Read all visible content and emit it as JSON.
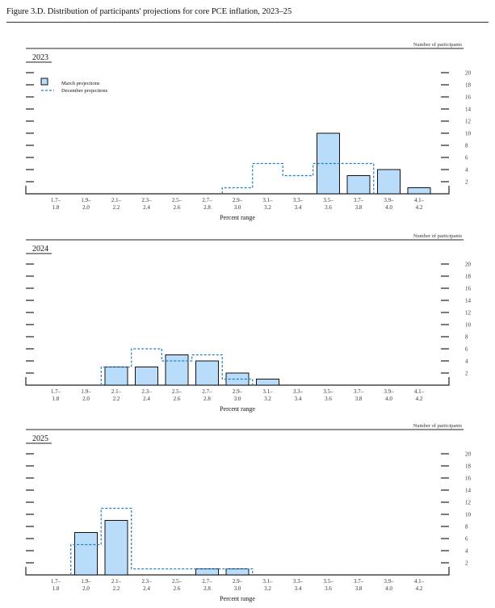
{
  "figure_title": "Figure 3.D. Distribution of participants' projections for core PCE inflation, 2023–25",
  "chart_data": [
    {
      "type": "bar",
      "title": "2023",
      "xlabel": "Percent range",
      "ylabel": "Number of participants",
      "categories": [
        [
          "1.7–",
          "1.8"
        ],
        [
          "1.9–",
          "2.0"
        ],
        [
          "2.1–",
          "2.2"
        ],
        [
          "2.3–",
          "2.4"
        ],
        [
          "2.5–",
          "2.6"
        ],
        [
          "2.7–",
          "2.8"
        ],
        [
          "2.9–",
          "3.0"
        ],
        [
          "3.1–",
          "3.2"
        ],
        [
          "3.3–",
          "3.4"
        ],
        [
          "3.5–",
          "3.6"
        ],
        [
          "3.7–",
          "3.8"
        ],
        [
          "3.9–",
          "4.0"
        ],
        [
          "4.1–",
          "4.2"
        ]
      ],
      "yticks": [
        2,
        4,
        6,
        8,
        10,
        12,
        14,
        16,
        18,
        20
      ],
      "ylim": [
        0,
        20
      ],
      "legend": [
        "March projections",
        "December projections"
      ],
      "series": [
        {
          "name": "March projections",
          "values": [
            0,
            0,
            0,
            0,
            0,
            0,
            0,
            0,
            0,
            10,
            3,
            4,
            1
          ]
        },
        {
          "name": "December projections",
          "values": [
            0,
            0,
            0,
            0,
            0,
            0,
            1,
            5,
            3,
            5,
            5,
            0,
            0
          ]
        }
      ]
    },
    {
      "type": "bar",
      "title": "2024",
      "xlabel": "Percent range",
      "ylabel": "Number of participants",
      "categories": [
        [
          "1.7–",
          "1.8"
        ],
        [
          "1.9–",
          "2.0"
        ],
        [
          "2.1–",
          "2.2"
        ],
        [
          "2.3–",
          "2.4"
        ],
        [
          "2.5–",
          "2.6"
        ],
        [
          "2.7–",
          "2.8"
        ],
        [
          "2.9–",
          "3.0"
        ],
        [
          "3.1–",
          "3.2"
        ],
        [
          "3.3–",
          "3.4"
        ],
        [
          "3.5–",
          "3.6"
        ],
        [
          "3.7–",
          "3.8"
        ],
        [
          "3.9–",
          "4.0"
        ],
        [
          "4.1–",
          "4.2"
        ]
      ],
      "yticks": [
        2,
        4,
        6,
        8,
        10,
        12,
        14,
        16,
        18,
        20
      ],
      "ylim": [
        0,
        20
      ],
      "series": [
        {
          "name": "March projections",
          "values": [
            0,
            0,
            3,
            3,
            5,
            4,
            2,
            1,
            0,
            0,
            0,
            0,
            0
          ]
        },
        {
          "name": "December projections",
          "values": [
            0,
            0,
            3,
            6,
            4,
            5,
            1,
            0,
            0,
            0,
            0,
            0,
            0
          ]
        }
      ]
    },
    {
      "type": "bar",
      "title": "2025",
      "xlabel": "Percent range",
      "ylabel": "Number of participants",
      "categories": [
        [
          "1.7–",
          "1.8"
        ],
        [
          "1.9–",
          "2.0"
        ],
        [
          "2.1–",
          "2.2"
        ],
        [
          "2.3–",
          "2.4"
        ],
        [
          "2.5–",
          "2.6"
        ],
        [
          "2.7–",
          "2.8"
        ],
        [
          "2.9–",
          "3.0"
        ],
        [
          "3.1–",
          "3.2"
        ],
        [
          "3.3–",
          "3.4"
        ],
        [
          "3.5–",
          "3.6"
        ],
        [
          "3.7–",
          "3.8"
        ],
        [
          "3.9–",
          "4.0"
        ],
        [
          "4.1–",
          "4.2"
        ]
      ],
      "yticks": [
        2,
        4,
        6,
        8,
        10,
        12,
        14,
        16,
        18,
        20
      ],
      "ylim": [
        0,
        20
      ],
      "series": [
        {
          "name": "March projections",
          "values": [
            0,
            7,
            9,
            0,
            0,
            1,
            1,
            0,
            0,
            0,
            0,
            0,
            0
          ]
        },
        {
          "name": "December projections",
          "values": [
            0,
            5,
            11,
            1,
            1,
            1,
            1,
            0,
            0,
            0,
            0,
            0,
            0
          ]
        }
      ]
    }
  ],
  "colors": {
    "march_fill": "#b9dcfa",
    "march_stroke": "#111111",
    "december_line": "#1f7fc0",
    "axis": "#222222",
    "text": "#333333"
  }
}
